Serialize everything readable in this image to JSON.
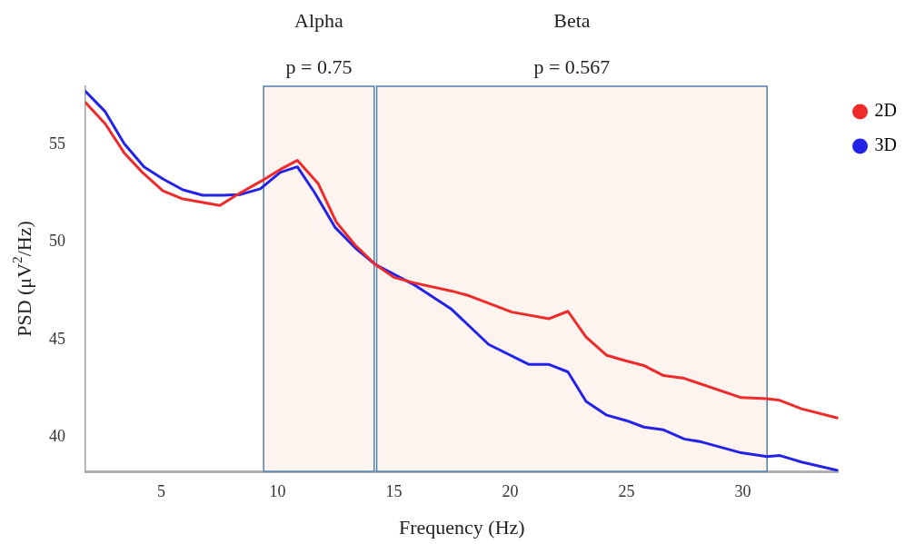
{
  "chart_data": {
    "type": "line",
    "xlabel": "Frequency (Hz)",
    "ylabel": "PSD (μV$^{2}$/Hz)",
    "xlim": [
      1.74,
      34.1
    ],
    "xticks": [
      5,
      10,
      15,
      20,
      25,
      30
    ],
    "ylim": [
      38.25,
      58
    ],
    "yticks": [
      40,
      45,
      50,
      55
    ],
    "grid": false,
    "legend": "top right",
    "marker": "none",
    "line_style": "solid",
    "series": [
      {
        "name": "2D",
        "color": "#ee2a2a",
        "x": [
          1.74,
          2.59,
          3.41,
          4.19,
          5.07,
          5.93,
          7.52,
          8.22,
          9.33,
          10.11,
          10.85,
          11.74,
          12.52,
          13.33,
          14.19,
          15,
          15.85,
          17.48,
          18.22,
          20.07,
          21.67,
          22.48,
          23.26,
          24.15,
          25,
          25.74,
          26.59,
          27.48,
          29.93,
          31.04,
          31.59,
          32.52,
          34.07
        ],
        "values": [
          57.17,
          56.08,
          54.58,
          53.58,
          52.64,
          52.22,
          51.89,
          52.41,
          53.16,
          53.73,
          54.2,
          53.02,
          51.04,
          49.86,
          48.87,
          48.2,
          47.92,
          47.5,
          47.26,
          46.42,
          46.08,
          46.46,
          45.14,
          44.2,
          43.91,
          43.68,
          43.16,
          43.02,
          42.03,
          41.98,
          41.89,
          41.46,
          40.99
        ]
      },
      {
        "name": "3D",
        "color": "#2323e8",
        "x": [
          1.74,
          2.59,
          3.41,
          4.26,
          5.07,
          5.93,
          6.78,
          7.67,
          8.41,
          9.26,
          10.11,
          10.85,
          11.59,
          12.48,
          13.33,
          14.19,
          15.85,
          17.48,
          19.07,
          20.81,
          21.67,
          22.48,
          23.26,
          24.15,
          25,
          25.74,
          26.59,
          27.48,
          28.22,
          29.93,
          31.04,
          31.59,
          32.52,
          34.07
        ],
        "values": [
          57.74,
          56.7,
          55.05,
          53.87,
          53.25,
          52.69,
          52.41,
          52.41,
          52.45,
          52.74,
          53.58,
          53.87,
          52.55,
          50.75,
          49.72,
          48.87,
          47.83,
          46.56,
          44.76,
          43.73,
          43.73,
          43.35,
          41.84,
          41.13,
          40.85,
          40.52,
          40.38,
          39.91,
          39.76,
          39.2,
          39.01,
          39.06,
          38.73,
          38.3
        ]
      }
    ],
    "bands": [
      {
        "axis": "x",
        "from": 9.4,
        "to": 14.15,
        "label": "Alpha",
        "color": "#fdf3ef"
      },
      {
        "axis": "x",
        "from": 14.26,
        "to": 31.04,
        "label": "Beta",
        "color": "#fdf3ef"
      }
    ],
    "annotations": [
      "p = 0.75",
      "p = 0.567"
    ]
  }
}
